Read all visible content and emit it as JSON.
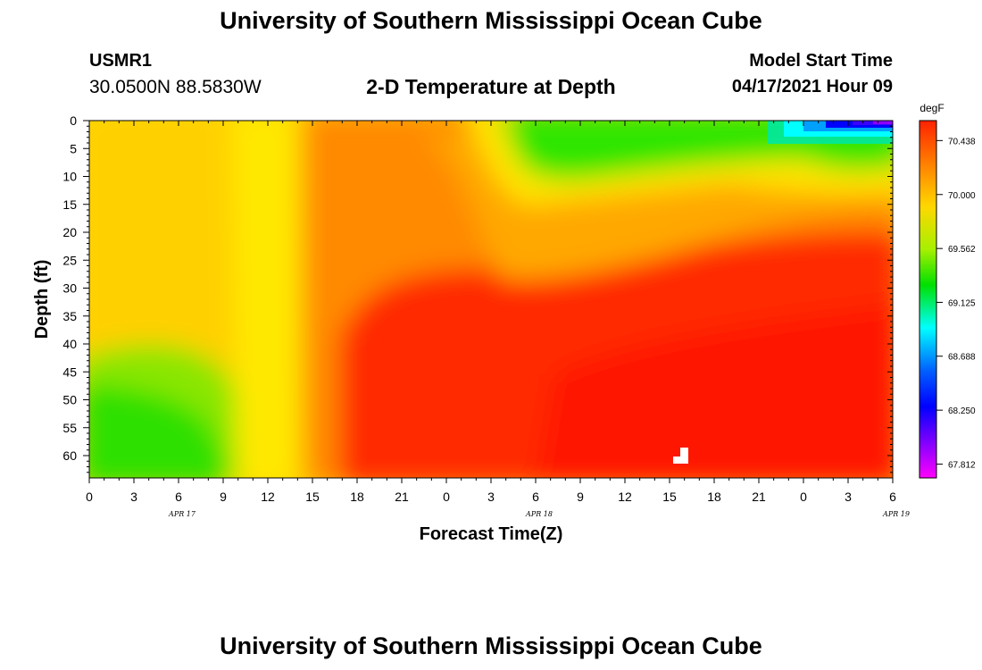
{
  "header": {
    "title": "University of Southern Mississippi Ocean Cube",
    "station_id": "USMR1",
    "station_coords": "30.0500N  88.5830W",
    "plot_title": "2-D Temperature at Depth",
    "start_label": "Model Start Time",
    "start_value": "04/17/2021 Hour 09"
  },
  "footer": {
    "title": "University of Southern Mississippi Ocean Cube"
  },
  "colors": {
    "red": "#ff1a00",
    "orange": "#ff8c00",
    "yellow": "#ffd700",
    "green": "#22e000",
    "cyan": "#00ffff",
    "blue": "#0000ff",
    "purple": "#b000ff",
    "magenta": "#ff00ff"
  },
  "chart_data": {
    "type": "heatmap",
    "xlabel": "Forecast Time(Z)",
    "ylabel": "Depth (ft)",
    "x_tick_labels": [
      "0",
      "3",
      "6",
      "9",
      "12",
      "15",
      "18",
      "21",
      "0",
      "3",
      "6",
      "9",
      "12",
      "15",
      "18",
      "21",
      "0",
      "3",
      "6"
    ],
    "date_labels": [
      "APR 17",
      "APR 18",
      "APR 19"
    ],
    "y_tick_labels": [
      "0",
      "5",
      "10",
      "15",
      "20",
      "25",
      "30",
      "35",
      "40",
      "45",
      "50",
      "55",
      "60"
    ],
    "ylim": [
      0,
      64
    ],
    "y_inverted": true,
    "colorbar_unit": "degF",
    "colorbar_ticks": [
      "70.438",
      "70.000",
      "69.562",
      "69.125",
      "68.688",
      "68.250",
      "67.812"
    ],
    "colorbar_range": [
      67.7,
      70.6
    ]
  }
}
